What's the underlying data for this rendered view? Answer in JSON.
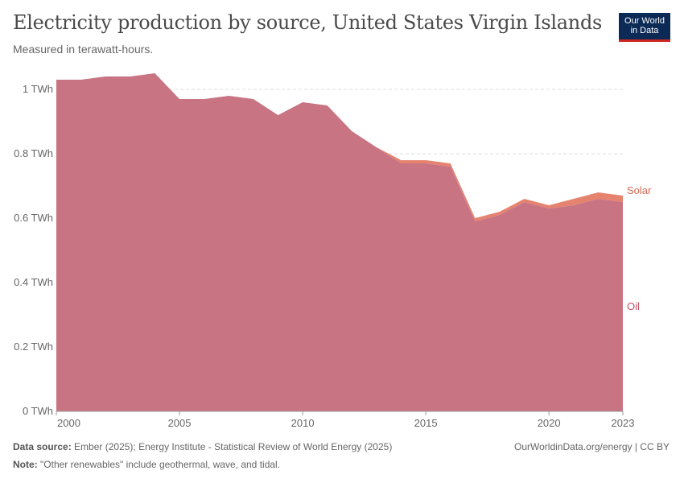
{
  "header": {
    "title": "Electricity production by source, United States Virgin Islands",
    "subtitle": "Measured in terawatt-hours.",
    "logo_line1": "Our World",
    "logo_line2": "in Data"
  },
  "footer": {
    "source_label": "Data source:",
    "source_text": "Ember (2025); Energy Institute - Statistical Review of World Energy (2025)",
    "note_label": "Note:",
    "note_text": "\"Other renewables\" include geothermal, wave, and tidal.",
    "link_text": "OurWorldinData.org/energy",
    "license_text": "| CC BY"
  },
  "colors": {
    "oil": "#c97483",
    "solar": "#e6836f",
    "oil_label": "#c14e63",
    "solar_label": "#d26a54",
    "grid": "#dddddd",
    "axis": "#666666"
  },
  "chart_data": {
    "type": "area",
    "stacked": true,
    "title": "Electricity production by source, United States Virgin Islands",
    "subtitle": "Measured in terawatt-hours.",
    "xlabel": "",
    "ylabel": "",
    "x": [
      2000,
      2001,
      2002,
      2003,
      2004,
      2005,
      2006,
      2007,
      2008,
      2009,
      2010,
      2011,
      2012,
      2013,
      2014,
      2015,
      2016,
      2017,
      2018,
      2019,
      2020,
      2021,
      2022,
      2023
    ],
    "series": [
      {
        "name": "Oil",
        "values": [
          1.03,
          1.03,
          1.04,
          1.04,
          1.05,
          0.97,
          0.97,
          0.98,
          0.97,
          0.92,
          0.96,
          0.95,
          0.87,
          0.82,
          0.77,
          0.77,
          0.76,
          0.59,
          0.61,
          0.65,
          0.63,
          0.64,
          0.66,
          0.65
        ]
      },
      {
        "name": "Solar",
        "values": [
          0,
          0,
          0,
          0,
          0,
          0,
          0,
          0,
          0,
          0,
          0,
          0,
          0,
          0,
          0.01,
          0.01,
          0.01,
          0.01,
          0.01,
          0.01,
          0.01,
          0.02,
          0.02,
          0.02
        ]
      }
    ],
    "xlim": [
      2000,
      2023
    ],
    "ylim": [
      0,
      1.05
    ],
    "x_ticks": [
      2000,
      2005,
      2010,
      2015,
      2020,
      2023
    ],
    "y_ticks": [
      0,
      0.2,
      0.4,
      0.6,
      0.8,
      1
    ],
    "y_tick_labels": [
      "0 TWh",
      "0.2 TWh",
      "0.4 TWh",
      "0.6 TWh",
      "0.8 TWh",
      "1 TWh"
    ],
    "grid": true,
    "legend": "inline-right"
  }
}
